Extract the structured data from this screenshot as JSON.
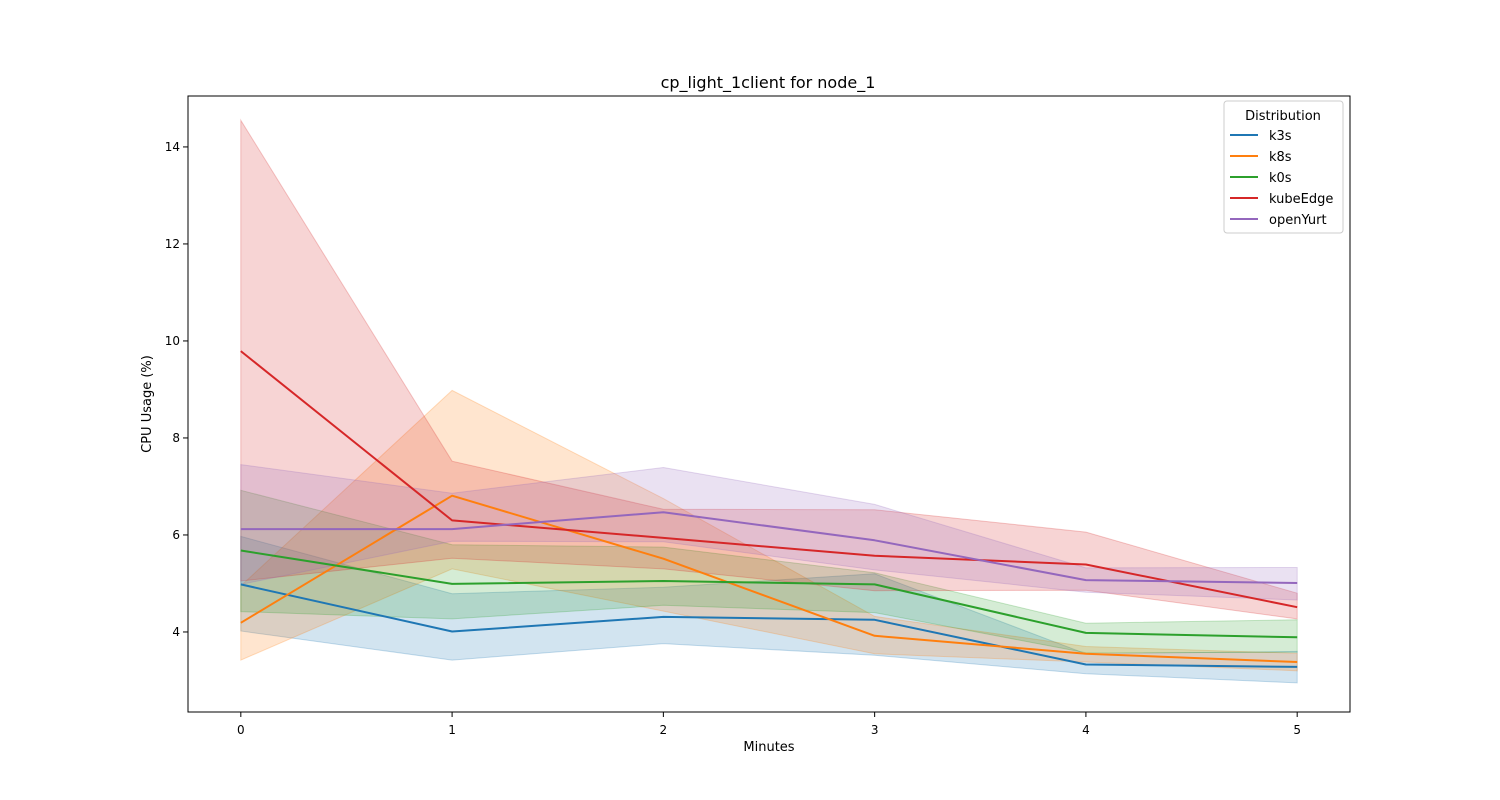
{
  "chart_data": {
    "type": "line",
    "title": "cp_light_1client for node_1",
    "xlabel": "Minutes",
    "ylabel": "CPU Usage (%)",
    "x": [
      0,
      1,
      2,
      3,
      4,
      5
    ],
    "xlim": [
      -0.25,
      5.25
    ],
    "ylim": [
      2.35,
      15.05
    ],
    "xticks": [
      "0",
      "1",
      "2",
      "3",
      "4",
      "5"
    ],
    "yticks": [
      "4",
      "6",
      "8",
      "10",
      "12",
      "14"
    ],
    "ytick_values": [
      4,
      6,
      8,
      10,
      12,
      14
    ],
    "grid": false,
    "legend": {
      "title": "Distribution",
      "placement": "top-right"
    },
    "series": [
      {
        "name": "k3s",
        "color": "#1f77b4",
        "values": [
          4.98,
          4.01,
          4.31,
          4.25,
          3.33,
          3.28
        ],
        "lower": [
          4.02,
          3.42,
          3.76,
          3.52,
          3.14,
          2.95
        ],
        "upper": [
          5.97,
          4.79,
          4.92,
          5.2,
          3.55,
          3.6
        ]
      },
      {
        "name": "k8s",
        "color": "#ff7f0e",
        "values": [
          4.19,
          6.81,
          5.51,
          3.92,
          3.55,
          3.38
        ],
        "lower": [
          3.42,
          5.3,
          4.43,
          3.55,
          3.38,
          3.2
        ],
        "upper": [
          4.95,
          8.98,
          6.75,
          4.32,
          3.7,
          3.56
        ]
      },
      {
        "name": "k0s",
        "color": "#2ca02c",
        "values": [
          5.68,
          4.99,
          5.05,
          4.98,
          3.98,
          3.89
        ],
        "lower": [
          4.42,
          4.27,
          4.55,
          4.4,
          3.57,
          3.58
        ],
        "upper": [
          6.92,
          5.8,
          5.75,
          5.22,
          4.18,
          4.25
        ]
      },
      {
        "name": "kubeEdge",
        "color": "#d62728",
        "values": [
          9.79,
          6.3,
          5.94,
          5.57,
          5.39,
          4.51
        ],
        "lower": [
          5.05,
          5.52,
          5.3,
          4.85,
          4.86,
          4.27
        ],
        "upper": [
          14.55,
          7.52,
          6.53,
          6.52,
          6.06,
          4.8
        ]
      },
      {
        "name": "openYurt",
        "color": "#9467bd",
        "values": [
          6.12,
          6.12,
          6.47,
          5.89,
          5.07,
          5.01
        ],
        "lower": [
          4.98,
          5.87,
          5.86,
          5.28,
          4.82,
          4.66
        ],
        "upper": [
          7.45,
          6.86,
          7.39,
          6.63,
          5.32,
          5.33
        ]
      }
    ]
  }
}
